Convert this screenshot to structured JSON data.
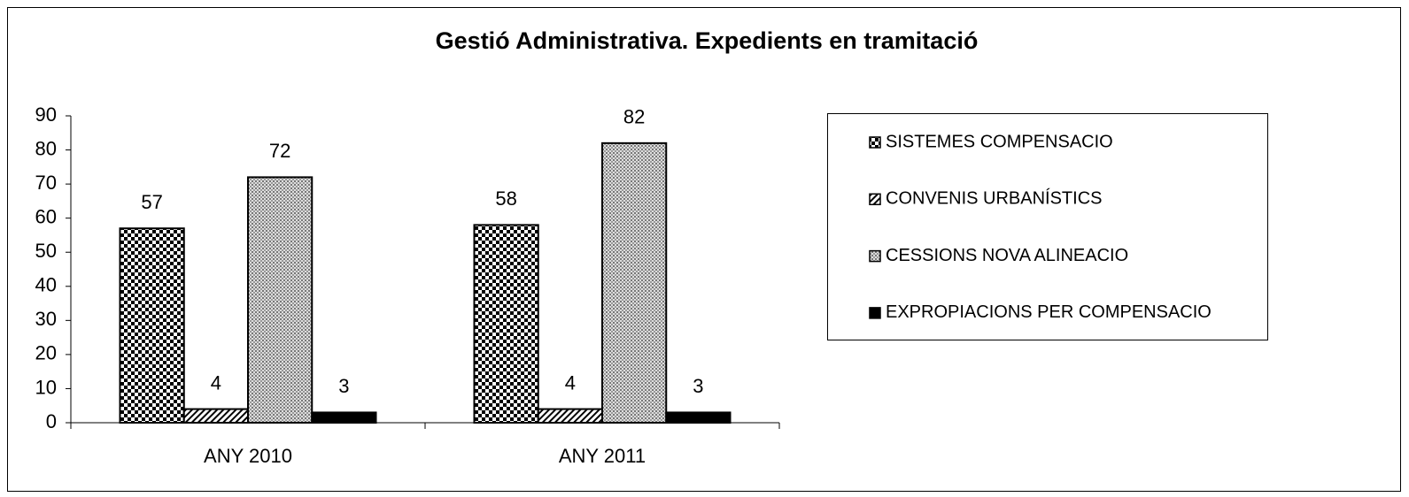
{
  "chart_data": {
    "type": "bar",
    "title": "Gestió Administrativa. Expedients en tramitació",
    "categories": [
      "ANY 2010",
      "ANY 2011"
    ],
    "series": [
      {
        "name": "SISTEMES  COMPENSACIO",
        "color": "#000000",
        "pattern": "checker",
        "values": [
          57,
          58
        ]
      },
      {
        "name": "CONVENIS URBANÍSTICS",
        "color": "#000000",
        "pattern": "diagonal",
        "values": [
          4,
          4
        ]
      },
      {
        "name": "CESSIONS NOVA ALINEACIO",
        "color": "#000000",
        "pattern": "crosshatch",
        "values": [
          72,
          82
        ]
      },
      {
        "name": "EXPROPIACIONS PER COMPENSACIO",
        "color": "#000000",
        "pattern": "solid",
        "values": [
          3,
          3
        ]
      }
    ],
    "ylim": [
      0,
      90
    ],
    "yticks": [
      0,
      10,
      20,
      30,
      40,
      50,
      60,
      70,
      80,
      90
    ],
    "grid": false,
    "legend": "right"
  }
}
